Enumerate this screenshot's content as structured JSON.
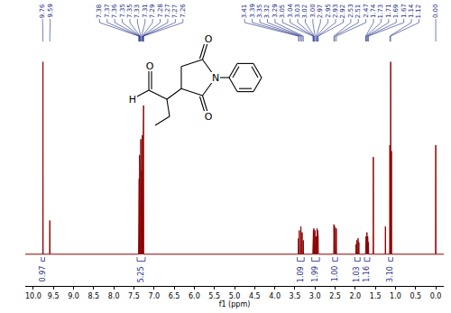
{
  "chart_data": {
    "type": "line",
    "x_label": "f1 (ppm)",
    "color": "#8b0000",
    "grid": false,
    "tick_labels": "x",
    "xlim": [
      10.2,
      -0.2
    ],
    "xticks": [
      {
        "value": 10,
        "label": "10.0"
      },
      9.5,
      {
        "value": 9,
        "label": "9.0"
      },
      8.5,
      {
        "value": 8,
        "label": "8.0"
      },
      7.5,
      {
        "value": 7,
        "label": "7.0"
      },
      6.5,
      {
        "value": 6,
        "label": "6.0"
      },
      5.5,
      {
        "value": 5,
        "label": "5.0"
      },
      4.5,
      {
        "value": 4,
        "label": "4.0"
      },
      3.5,
      {
        "value": 3,
        "label": "3.0"
      },
      2.5,
      {
        "value": 2,
        "label": "2.0"
      },
      1.5,
      {
        "value": 1,
        "label": "1.0"
      },
      0.5,
      {
        "value": 0,
        "label": "0.0"
      }
    ],
    "ylim": [
      -0.16,
      1.0
    ],
    "x": [
      10.2,
      9.765,
      9.76,
      9.755,
      9.595,
      9.59,
      9.585,
      7.385,
      7.38,
      7.375,
      7.375,
      7.37,
      7.365,
      7.365,
      7.36,
      7.355,
      7.355,
      7.35,
      7.345,
      7.335,
      7.33,
      7.325,
      7.315,
      7.31,
      7.305,
      7.295,
      7.29,
      7.285,
      7.285,
      7.28,
      7.275,
      7.275,
      7.27,
      7.265,
      7.265,
      7.26,
      7.255,
      3.415,
      3.41,
      3.405,
      3.395,
      3.39,
      3.385,
      3.355,
      3.35,
      3.345,
      3.325,
      3.32,
      3.315,
      3.295,
      3.29,
      3.285,
      3.055,
      3.05,
      3.045,
      3.045,
      3.04,
      3.035,
      3.035,
      3.03,
      3.025,
      3.025,
      3.02,
      3.015,
      3.005,
      3.0,
      2.995,
      2.975,
      2.97,
      2.965,
      2.955,
      2.95,
      2.945,
      2.935,
      2.93,
      2.925,
      2.925,
      2.92,
      2.915,
      2.535,
      2.53,
      2.525,
      2.515,
      2.51,
      2.505,
      2.475,
      2.47,
      2.465,
      1.985,
      1.98,
      1.975,
      1.965,
      1.96,
      1.955,
      1.935,
      1.93,
      1.925,
      1.915,
      1.91,
      1.905,
      1.745,
      1.74,
      1.735,
      1.735,
      1.73,
      1.725,
      1.715,
      1.71,
      1.705,
      1.695,
      1.69,
      1.685,
      1.675,
      1.67,
      1.665,
      1.555,
      1.55,
      1.545,
      1.255,
      1.25,
      1.245,
      1.145,
      1.14,
      1.135,
      1.125,
      1.12,
      1.115,
      1.105,
      1.1,
      1.095,
      0.005,
      0.0,
      -0.005,
      -0.2
    ],
    "values": [
      0,
      0,
      0.97,
      0,
      0,
      0.17,
      0,
      0,
      0.3,
      0,
      0,
      0.38,
      0,
      0,
      0.5,
      0,
      0,
      0.45,
      0,
      0,
      0.58,
      0,
      0,
      0.42,
      0,
      0,
      0.6,
      0,
      0,
      0.5,
      0,
      0,
      0.55,
      0,
      0,
      0.75,
      0,
      0,
      0.08,
      0,
      0,
      0.12,
      0,
      0,
      0.14,
      0,
      0,
      0.11,
      0,
      0,
      0.07,
      0,
      0,
      0.08,
      0,
      0,
      0.12,
      0,
      0,
      0.13,
      0,
      0,
      0.1,
      0,
      0,
      0.12,
      0,
      0,
      0.09,
      0,
      0,
      0.13,
      0,
      0,
      0.12,
      0,
      0,
      0.09,
      0,
      0,
      0.15,
      0,
      0,
      0.14,
      0,
      0,
      0.13,
      0,
      0,
      0.05,
      0,
      0,
      0.07,
      0,
      0,
      0.08,
      0,
      0,
      0.06,
      0,
      0,
      0.07,
      0,
      0,
      0.09,
      0,
      0,
      0.11,
      0,
      0,
      0.09,
      0,
      0,
      0.06,
      0,
      0,
      0.49,
      0,
      0,
      0.14,
      0,
      0,
      0.55,
      0,
      0,
      0.97,
      0,
      0,
      0.52,
      0,
      0,
      0.55,
      0,
      0
    ],
    "peak_labels": [
      "9.76",
      "9.59",
      "7.38",
      "7.37",
      "7.36",
      "7.35",
      "7.35",
      "7.33",
      "7.31",
      "7.29",
      "7.28",
      "7.27",
      "7.27",
      "7.26",
      "3.41",
      "3.39",
      "3.35",
      "3.32",
      "3.29",
      "3.05",
      "3.04",
      "3.03",
      "3.02",
      "3.00",
      "2.97",
      "2.95",
      "2.93",
      "2.92",
      "2.53",
      "2.51",
      "2.47",
      "1.74",
      "1.73",
      "1.71",
      "1.69",
      "1.67",
      "1.14",
      "1.12",
      "0.00"
    ],
    "integrals": [
      {
        "from": 9.8,
        "to": 9.72,
        "label": "0.97"
      },
      {
        "from": 7.42,
        "to": 7.22,
        "label": "5.25"
      },
      {
        "from": 3.44,
        "to": 3.27,
        "label": "1.09"
      },
      {
        "from": 3.08,
        "to": 2.89,
        "label": "1.99"
      },
      {
        "from": 2.56,
        "to": 2.44,
        "label": "1.00"
      },
      {
        "from": 2.01,
        "to": 1.88,
        "label": "1.03"
      },
      {
        "from": 1.77,
        "to": 1.64,
        "label": "1.16"
      },
      {
        "from": 1.17,
        "to": 1.07,
        "label": "3.10"
      }
    ],
    "structure": {
      "labels": [
        "H",
        "O",
        "O",
        "O",
        "N"
      ]
    }
  }
}
